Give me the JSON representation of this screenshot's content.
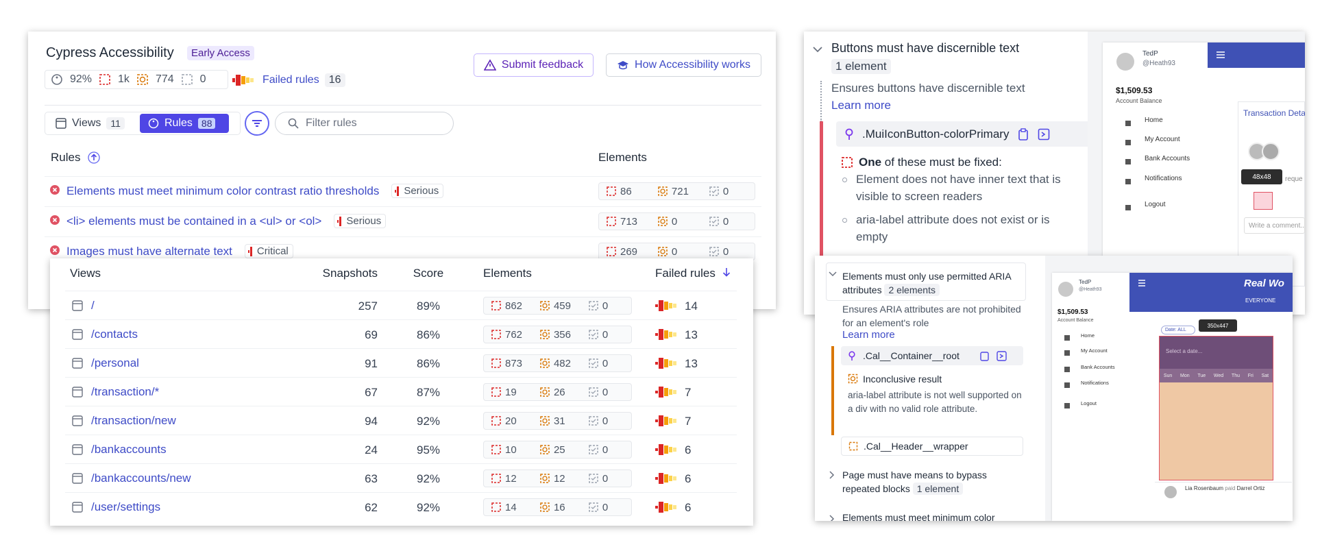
{
  "header": {
    "title": "Cypress Accessibility",
    "badge": "Early Access",
    "score": "92%",
    "violations": "1k",
    "incomplete": "774",
    "passed": "0",
    "failed_rules_label": "Failed rules",
    "failed_rules_count": "16",
    "submit_feedback": "Submit feedback",
    "how_it_works": "How Accessibility works"
  },
  "tabs": {
    "views": "Views",
    "views_count": "11",
    "rules": "Rules",
    "rules_count": "88",
    "filter_placeholder": "Filter rules"
  },
  "rules_table": {
    "col_rules": "Rules",
    "col_elements": "Elements",
    "rows": [
      {
        "name": "Elements must meet minimum color contrast ratio thresholds",
        "severity": "Serious",
        "counts": [
          "86",
          "721",
          "0"
        ]
      },
      {
        "name": "<li> elements must be contained in a <ul> or <ol>",
        "severity": "Serious",
        "counts": [
          "713",
          "0",
          "0"
        ]
      },
      {
        "name": "Images must have alternate text",
        "severity": "Critical",
        "counts": [
          "269",
          "0",
          "0"
        ]
      }
    ]
  },
  "views_table": {
    "columns": [
      "Views",
      "Snapshots",
      "Score",
      "Elements",
      "Failed rules"
    ],
    "rows": [
      {
        "view": "/",
        "snapshots": "257",
        "score": "89%",
        "counts": [
          "862",
          "459",
          "0"
        ],
        "failed": "14"
      },
      {
        "view": "/contacts",
        "snapshots": "69",
        "score": "86%",
        "counts": [
          "762",
          "356",
          "0"
        ],
        "failed": "13"
      },
      {
        "view": "/personal",
        "snapshots": "91",
        "score": "86%",
        "counts": [
          "873",
          "482",
          "0"
        ],
        "failed": "13"
      },
      {
        "view": "/transaction/*",
        "snapshots": "67",
        "score": "87%",
        "counts": [
          "19",
          "26",
          "0"
        ],
        "failed": "7"
      },
      {
        "view": "/transaction/new",
        "snapshots": "94",
        "score": "92%",
        "counts": [
          "20",
          "31",
          "0"
        ],
        "failed": "7"
      },
      {
        "view": "/bankaccounts",
        "snapshots": "24",
        "score": "95%",
        "counts": [
          "10",
          "25",
          "0"
        ],
        "failed": "6"
      },
      {
        "view": "/bankaccounts/new",
        "snapshots": "63",
        "score": "92%",
        "counts": [
          "12",
          "12",
          "0"
        ],
        "failed": "6"
      },
      {
        "view": "/user/settings",
        "snapshots": "62",
        "score": "92%",
        "counts": [
          "14",
          "16",
          "0"
        ],
        "failed": "6"
      }
    ]
  },
  "detail_top": {
    "title": "Buttons must have discernible text",
    "badge": "1 element",
    "description": "Ensures buttons have discernible text",
    "learn_more": "Learn more",
    "selector": ".MuiIconButton-colorPrimary",
    "fix_strong": "One",
    "fix_rest": "of these must be fixed:",
    "bullets": [
      "Element does not have inner text that is visible to screen readers",
      "aria-label attribute does not exist or is empty"
    ]
  },
  "app_top": {
    "name": "TedP",
    "handle": "@Heath93",
    "balance": "$1,509.53",
    "balance_label": "Account Balance",
    "nav": [
      "Home",
      "My Account",
      "Bank Accounts",
      "Notifications",
      "Logout"
    ],
    "card_title": "Transaction Deta",
    "tooltip": "48x48",
    "request": "reque",
    "comment": "Write a comment..."
  },
  "detail_bottom": {
    "title": "Elements must only use permitted ARIA attributes",
    "badge": "2 elements",
    "description": "Ensures ARIA attributes are not prohibited for an element's role",
    "learn_more": "Learn more",
    "selector": ".Cal__Container__root",
    "result": "Inconclusive result",
    "result_text": "aria-label attribute is not well supported on a div with no valid role attribute.",
    "selector2": ".Cal__Header__wrapper",
    "rule2": "Page must have means to bypass repeated blocks",
    "rule2_badge": "1 element",
    "rule3": "Elements must meet minimum color"
  },
  "app_bottom": {
    "name": "TedP",
    "handle": "@Heath93",
    "balance": "$1,509.53",
    "balance_label": "Account Balance",
    "nav": [
      "Home",
      "My Account",
      "Bank Accounts",
      "Notifications",
      "Logout"
    ],
    "brand": "Real Wo",
    "tab": "EVERYONE",
    "date_filter": "Date: ALL",
    "tooltip": "350x447",
    "date_placeholder": "Select a date...",
    "weekdays": [
      "Sun",
      "Mon",
      "Tue",
      "Wed",
      "Thu",
      "Fri",
      "Sat"
    ],
    "payer": "Lia Rosenbaum",
    "paid": "paid",
    "payee": "Darrel Ortiz"
  }
}
